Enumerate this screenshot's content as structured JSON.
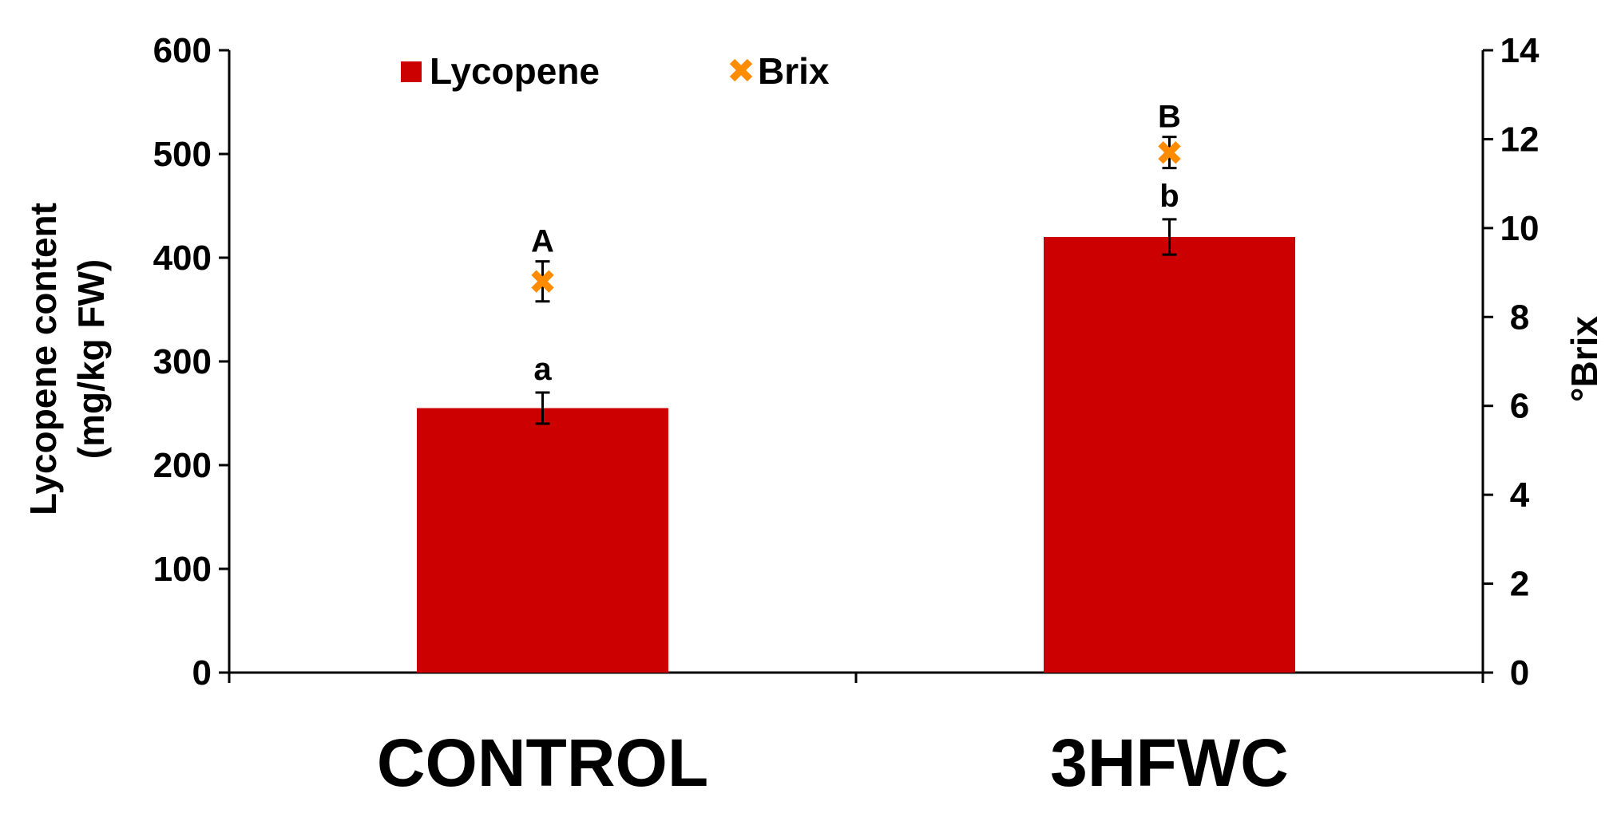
{
  "chart_data": {
    "type": "bar",
    "categories": [
      "CONTROL",
      "3HFWC"
    ],
    "colors": {
      "bar": "#cc0000",
      "marker": "#ff8c00"
    },
    "y_left": {
      "label_line1": "Lycopene content",
      "label_line2": "(mg/kg FW)",
      "lim": [
        0,
        600
      ],
      "ticks": [
        "0",
        "100",
        "200",
        "300",
        "400",
        "500",
        "600"
      ]
    },
    "y_right": {
      "label": "°Brix",
      "lim": [
        0,
        14
      ],
      "ticks": [
        "0",
        "2",
        "4",
        "6",
        "8",
        "10",
        "12",
        "14"
      ]
    },
    "series": [
      {
        "name": "Lycopene",
        "kind": "bar",
        "axis": "left",
        "values": [
          255,
          420
        ],
        "errors": [
          15,
          17
        ],
        "labels": [
          "a",
          "b"
        ]
      },
      {
        "name": "Brix",
        "kind": "marker",
        "axis": "right",
        "values": [
          8.8,
          11.7
        ],
        "errors": [
          0.45,
          0.35
        ],
        "labels": [
          "A",
          "B"
        ]
      }
    ],
    "legend": {
      "position": "top-left",
      "items": [
        "Lycopene",
        "Brix"
      ]
    },
    "grid": false
  }
}
